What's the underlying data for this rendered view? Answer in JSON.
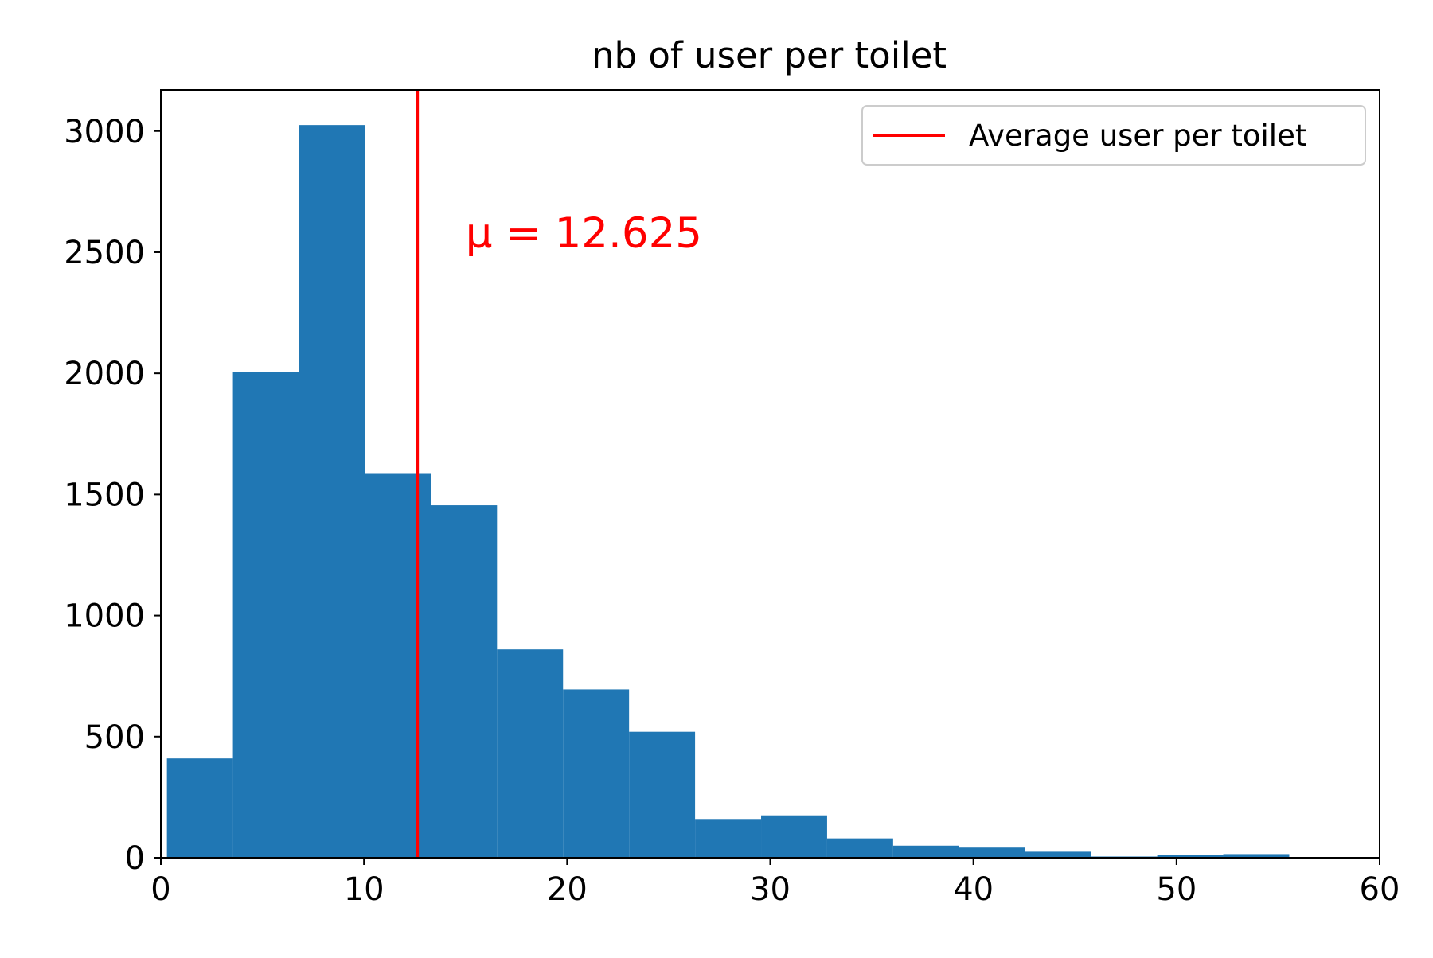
{
  "chart_data": {
    "type": "bar",
    "title": "nb of user per toilet",
    "xlabel": "",
    "ylabel": "",
    "xlim": [
      0,
      60
    ],
    "ylim": [
      0,
      3170
    ],
    "xticks": [
      0,
      10,
      20,
      30,
      40,
      50,
      60
    ],
    "yticks": [
      0,
      500,
      1000,
      1500,
      2000,
      2500,
      3000
    ],
    "grid": false,
    "bins": [
      {
        "x0": 0.3,
        "x1": 3.55,
        "count": 410
      },
      {
        "x0": 3.55,
        "x1": 6.8,
        "count": 2005
      },
      {
        "x0": 6.8,
        "x1": 10.05,
        "count": 3025
      },
      {
        "x0": 10.05,
        "x1": 13.3,
        "count": 1585
      },
      {
        "x0": 13.3,
        "x1": 16.55,
        "count": 1455
      },
      {
        "x0": 16.55,
        "x1": 19.8,
        "count": 860
      },
      {
        "x0": 19.8,
        "x1": 23.05,
        "count": 695
      },
      {
        "x0": 23.05,
        "x1": 26.3,
        "count": 520
      },
      {
        "x0": 26.3,
        "x1": 29.55,
        "count": 160
      },
      {
        "x0": 29.55,
        "x1": 32.8,
        "count": 175
      },
      {
        "x0": 32.8,
        "x1": 36.05,
        "count": 80
      },
      {
        "x0": 36.05,
        "x1": 39.3,
        "count": 50
      },
      {
        "x0": 39.3,
        "x1": 42.55,
        "count": 42
      },
      {
        "x0": 42.55,
        "x1": 45.8,
        "count": 25
      },
      {
        "x0": 45.8,
        "x1": 49.05,
        "count": 5
      },
      {
        "x0": 49.05,
        "x1": 52.3,
        "count": 10
      },
      {
        "x0": 52.3,
        "x1": 55.55,
        "count": 15
      },
      {
        "x0": 55.55,
        "x1": 58.8,
        "count": 3
      }
    ],
    "mean_line": {
      "x": 12.625,
      "label": "Average user per toilet",
      "annotation": "μ = 12.625",
      "annotation_position": {
        "x": 15.0,
        "y": 2520
      }
    },
    "legend": {
      "position": "top-right",
      "entries": [
        "Average user per toilet"
      ]
    },
    "colors": {
      "bars": "#2077b4",
      "mean_line": "#ff0000",
      "axis": "#000000",
      "legend_border": "#cccccc"
    }
  }
}
